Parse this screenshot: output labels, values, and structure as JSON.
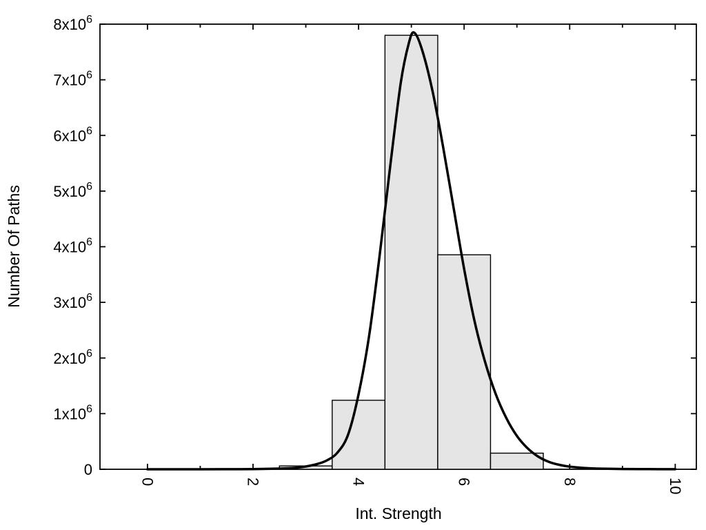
{
  "chart_data": {
    "type": "bar",
    "title": "",
    "xlabel": "Int. Strength",
    "ylabel": "Number Of Paths",
    "xlim": [
      -0.9,
      10.4
    ],
    "ylim": [
      0,
      8000000
    ],
    "grid": false,
    "legend": "none",
    "colors": {
      "background": "#ffffff",
      "bar_fill": "#e5e5e5",
      "bar_edge": "#000000",
      "curve": "#000000",
      "frame": "#000000"
    },
    "x_ticks": [
      {
        "v": 0,
        "label": "0"
      },
      {
        "v": 2,
        "label": "2"
      },
      {
        "v": 4,
        "label": "4"
      },
      {
        "v": 6,
        "label": "6"
      },
      {
        "v": 8,
        "label": "8"
      },
      {
        "v": 10,
        "label": "10"
      }
    ],
    "x_minor_ticks": [
      1,
      3,
      5,
      7,
      9
    ],
    "y_ticks": [
      {
        "v": 0,
        "base": "0",
        "exp": ""
      },
      {
        "v": 1000000,
        "base": "1x10",
        "exp": "6"
      },
      {
        "v": 2000000,
        "base": "2x10",
        "exp": "6"
      },
      {
        "v": 3000000,
        "base": "3x10",
        "exp": "6"
      },
      {
        "v": 4000000,
        "base": "4x10",
        "exp": "6"
      },
      {
        "v": 5000000,
        "base": "5x10",
        "exp": "6"
      },
      {
        "v": 6000000,
        "base": "6x10",
        "exp": "6"
      },
      {
        "v": 7000000,
        "base": "7x10",
        "exp": "6"
      },
      {
        "v": 8000000,
        "base": "8x10",
        "exp": "6"
      }
    ],
    "histogram": {
      "bin_width": 1,
      "bins": [
        {
          "x0": 2.5,
          "x1": 3.5,
          "count": 60000
        },
        {
          "x0": 3.5,
          "x1": 4.5,
          "count": 1240000
        },
        {
          "x0": 4.5,
          "x1": 5.5,
          "count": 7800000
        },
        {
          "x0": 5.5,
          "x1": 6.5,
          "count": 3855000
        },
        {
          "x0": 6.5,
          "x1": 7.5,
          "count": 290000
        }
      ]
    },
    "fit_curve": {
      "peak_x": 5.05,
      "peak_y": 7850000,
      "points": [
        [
          0,
          0
        ],
        [
          0.5,
          200
        ],
        [
          1,
          500
        ],
        [
          1.5,
          1200
        ],
        [
          2,
          4000
        ],
        [
          2.5,
          12000
        ],
        [
          2.8,
          26000
        ],
        [
          3,
          50000
        ],
        [
          3.2,
          90000
        ],
        [
          3.4,
          160000
        ],
        [
          3.6,
          300000
        ],
        [
          3.8,
          620000
        ],
        [
          4,
          1350000
        ],
        [
          4.2,
          2400000
        ],
        [
          4.4,
          3850000
        ],
        [
          4.6,
          5450000
        ],
        [
          4.8,
          6950000
        ],
        [
          4.95,
          7650000
        ],
        [
          5.05,
          7850000
        ],
        [
          5.2,
          7550000
        ],
        [
          5.4,
          6800000
        ],
        [
          5.6,
          5800000
        ],
        [
          5.8,
          4700000
        ],
        [
          6,
          3600000
        ],
        [
          6.2,
          2650000
        ],
        [
          6.4,
          1920000
        ],
        [
          6.6,
          1350000
        ],
        [
          6.8,
          920000
        ],
        [
          7,
          600000
        ],
        [
          7.2,
          380000
        ],
        [
          7.4,
          230000
        ],
        [
          7.6,
          135000
        ],
        [
          7.8,
          80000
        ],
        [
          8,
          47000
        ],
        [
          8.3,
          22000
        ],
        [
          8.6,
          11000
        ],
        [
          9,
          5000
        ],
        [
          9.5,
          2000
        ],
        [
          10,
          1000
        ]
      ]
    }
  }
}
